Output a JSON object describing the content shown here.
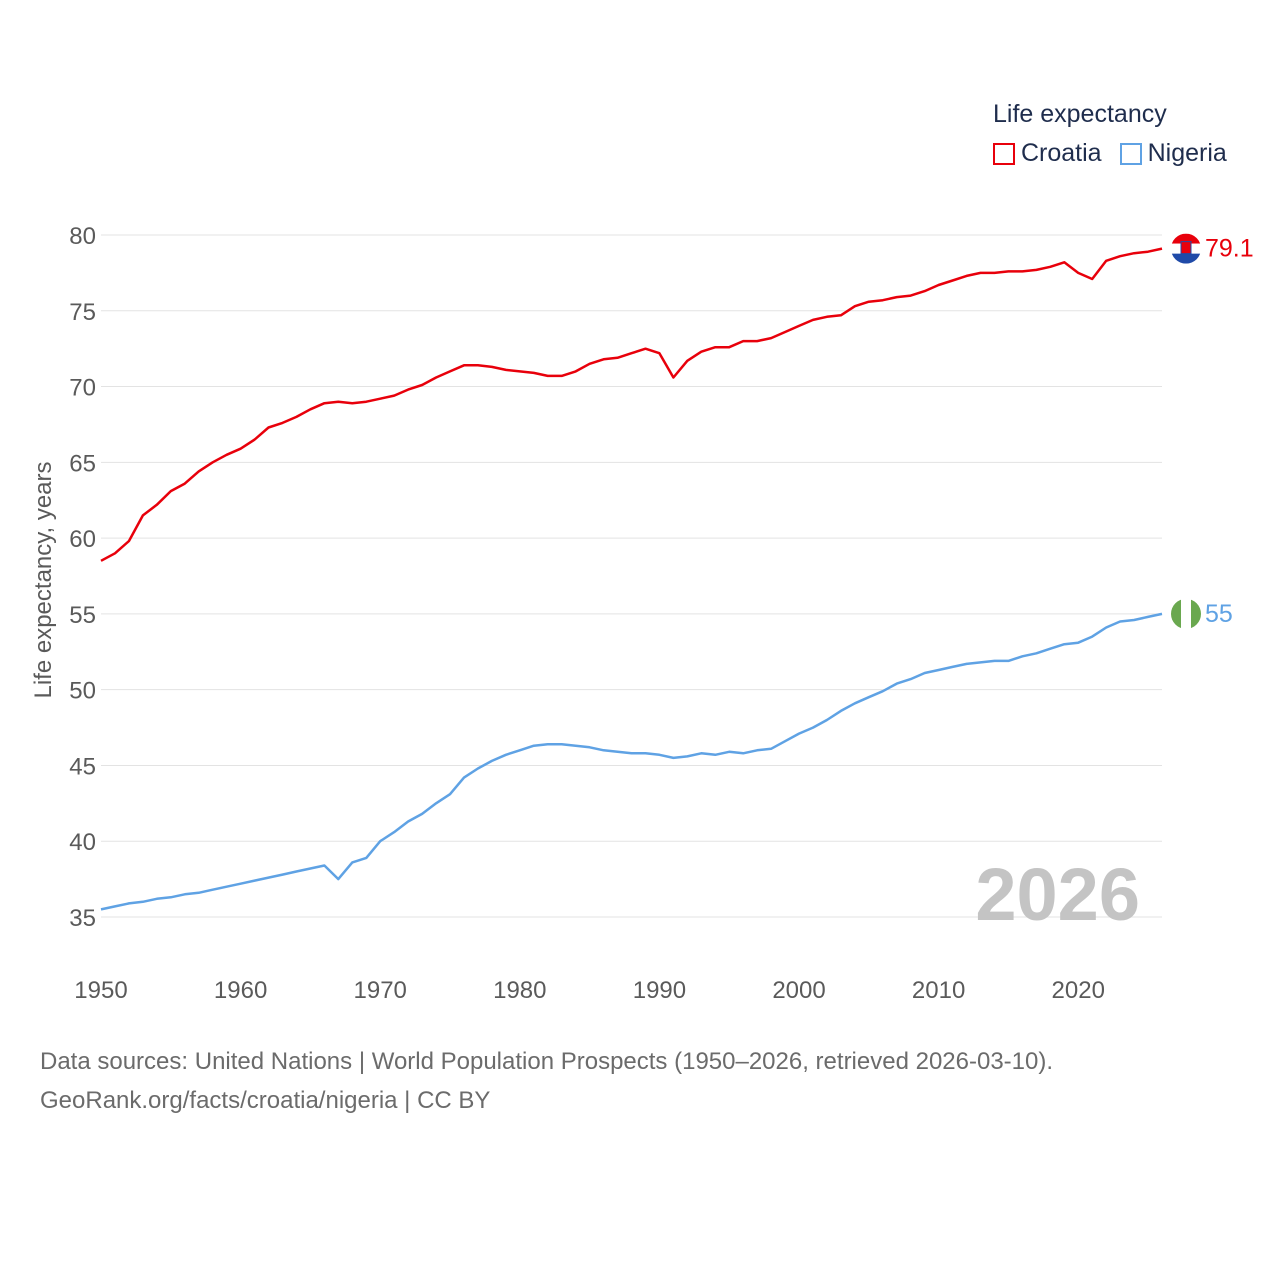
{
  "legend": {
    "title": "Life expectancy",
    "items": [
      {
        "label": "Croatia",
        "color": "#e8000b"
      },
      {
        "label": "Nigeria",
        "color": "#5fa2e4"
      }
    ]
  },
  "year_watermark": "2026",
  "source": {
    "line1": "Data sources: United Nations | World Population Prospects (1950–2026, retrieved 2026-03-10).",
    "line2": "GeoRank.org/facts/croatia/nigeria | CC BY"
  },
  "chart_data": {
    "type": "line",
    "ylabel": "Life expectancy, years",
    "xlabel": "",
    "xlim": [
      1950,
      2026
    ],
    "ylim": [
      32,
      82
    ],
    "x_ticks": [
      1950,
      1960,
      1970,
      1980,
      1990,
      2000,
      2010,
      2020
    ],
    "y_ticks": [
      35,
      40,
      45,
      50,
      55,
      60,
      65,
      70,
      75,
      80
    ],
    "grid": true,
    "series": [
      {
        "name": "Croatia",
        "color": "#e8000b",
        "end_label": "79.1",
        "x": [
          1950,
          1951,
          1952,
          1953,
          1954,
          1955,
          1956,
          1957,
          1958,
          1959,
          1960,
          1961,
          1962,
          1963,
          1964,
          1965,
          1966,
          1967,
          1968,
          1969,
          1970,
          1971,
          1972,
          1973,
          1974,
          1975,
          1976,
          1977,
          1978,
          1979,
          1980,
          1981,
          1982,
          1983,
          1984,
          1985,
          1986,
          1987,
          1988,
          1989,
          1990,
          1991,
          1992,
          1993,
          1994,
          1995,
          1996,
          1997,
          1998,
          1999,
          2000,
          2001,
          2002,
          2003,
          2004,
          2005,
          2006,
          2007,
          2008,
          2009,
          2010,
          2011,
          2012,
          2013,
          2014,
          2015,
          2016,
          2017,
          2018,
          2019,
          2020,
          2021,
          2022,
          2023,
          2024,
          2025,
          2026
        ],
        "values": [
          58.5,
          59.0,
          59.8,
          61.5,
          62.2,
          63.1,
          63.6,
          64.4,
          65.0,
          65.5,
          65.9,
          66.5,
          67.3,
          67.6,
          68.0,
          68.5,
          68.9,
          69.0,
          68.9,
          69.0,
          69.2,
          69.4,
          69.8,
          70.1,
          70.6,
          71.0,
          71.4,
          71.4,
          71.3,
          71.1,
          71.0,
          70.9,
          70.7,
          70.7,
          71.0,
          71.5,
          71.8,
          71.9,
          72.2,
          72.5,
          72.2,
          70.6,
          71.7,
          72.3,
          72.6,
          72.6,
          73.0,
          73.0,
          73.2,
          73.6,
          74.0,
          74.4,
          74.6,
          74.7,
          75.3,
          75.6,
          75.7,
          75.9,
          76.0,
          76.3,
          76.7,
          77.0,
          77.3,
          77.5,
          77.5,
          77.6,
          77.6,
          77.7,
          77.9,
          78.2,
          77.5,
          77.1,
          78.3,
          78.6,
          78.8,
          78.9,
          79.1
        ]
      },
      {
        "name": "Nigeria",
        "color": "#5fa2e4",
        "end_label": "55",
        "x": [
          1950,
          1951,
          1952,
          1953,
          1954,
          1955,
          1956,
          1957,
          1958,
          1959,
          1960,
          1961,
          1962,
          1963,
          1964,
          1965,
          1966,
          1967,
          1968,
          1969,
          1970,
          1971,
          1972,
          1973,
          1974,
          1975,
          1976,
          1977,
          1978,
          1979,
          1980,
          1981,
          1982,
          1983,
          1984,
          1985,
          1986,
          1987,
          1988,
          1989,
          1990,
          1991,
          1992,
          1993,
          1994,
          1995,
          1996,
          1997,
          1998,
          1999,
          2000,
          2001,
          2002,
          2003,
          2004,
          2005,
          2006,
          2007,
          2008,
          2009,
          2010,
          2011,
          2012,
          2013,
          2014,
          2015,
          2016,
          2017,
          2018,
          2019,
          2020,
          2021,
          2022,
          2023,
          2024,
          2025,
          2026
        ],
        "values": [
          35.5,
          35.7,
          35.9,
          36.0,
          36.2,
          36.3,
          36.5,
          36.6,
          36.8,
          37.0,
          37.2,
          37.4,
          37.6,
          37.8,
          38.0,
          38.2,
          38.4,
          37.5,
          38.6,
          38.9,
          40.0,
          40.6,
          41.3,
          41.8,
          42.5,
          43.1,
          44.2,
          44.8,
          45.3,
          45.7,
          46.0,
          46.3,
          46.4,
          46.4,
          46.3,
          46.2,
          46.0,
          45.9,
          45.8,
          45.8,
          45.7,
          45.5,
          45.6,
          45.8,
          45.7,
          45.9,
          45.8,
          46.0,
          46.1,
          46.6,
          47.1,
          47.5,
          48.0,
          48.6,
          49.1,
          49.5,
          49.9,
          50.4,
          50.7,
          51.1,
          51.3,
          51.5,
          51.7,
          51.8,
          51.9,
          51.9,
          52.2,
          52.4,
          52.7,
          53.0,
          53.1,
          53.5,
          54.1,
          54.5,
          54.6,
          54.8,
          55.0
        ]
      }
    ]
  }
}
